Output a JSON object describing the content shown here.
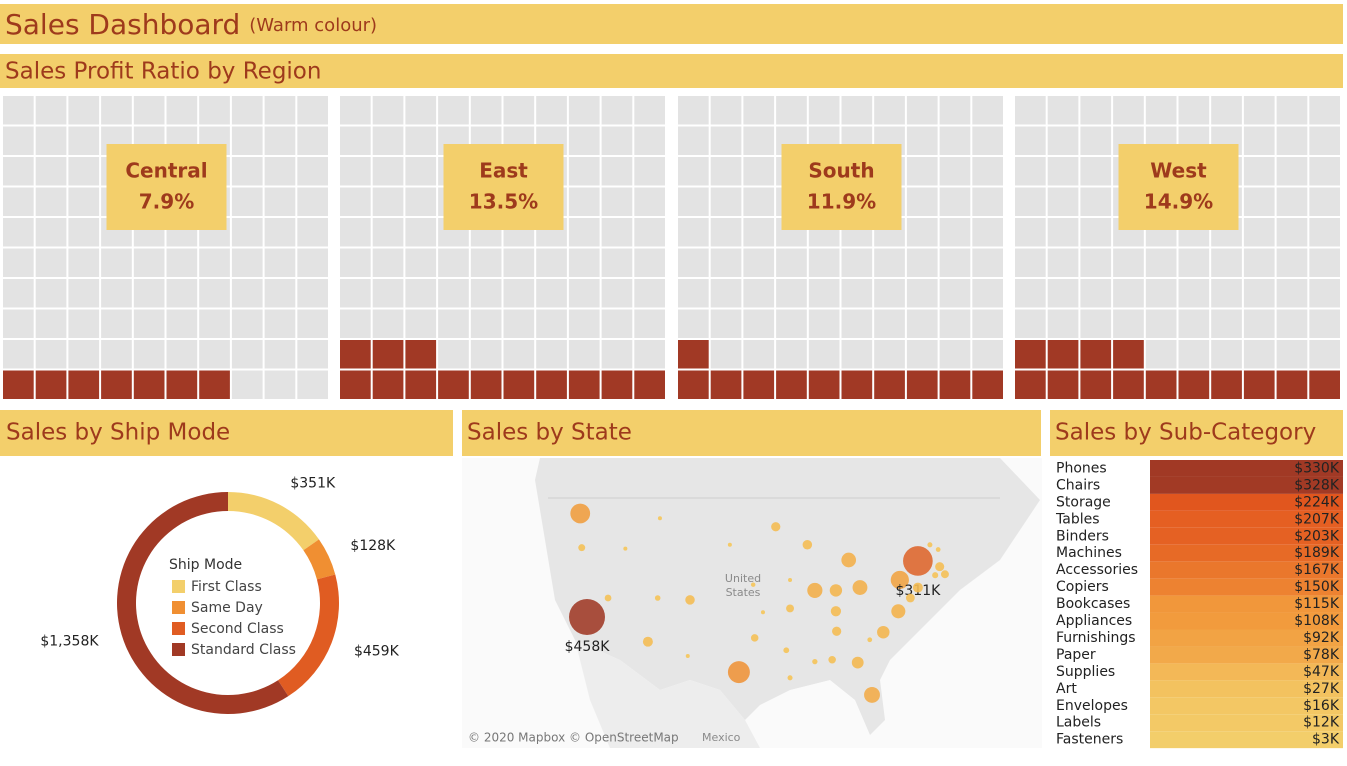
{
  "title": "Sales Dashboard",
  "subtitle": "(Warm colour)",
  "chart_data": [
    {
      "type": "waffle",
      "title": "Sales Profit Ratio by Region",
      "categories": [
        "Central",
        "East",
        "South",
        "West"
      ],
      "values": [
        7.9,
        13.5,
        11.9,
        14.9
      ],
      "value_labels": [
        "7.9%",
        "13.5%",
        "11.9%",
        "14.9%"
      ],
      "color": "#a13925",
      "empty_color": "#e3e3e3",
      "label_color": "#f3cf6b"
    },
    {
      "type": "donut",
      "title": "Sales by Ship Mode",
      "legend_title": "Ship Mode",
      "categories": [
        "First Class",
        "Same Day",
        "Second Class",
        "Standard Class"
      ],
      "values": [
        351000,
        128000,
        459000,
        1358000
      ],
      "value_labels": [
        "$351K",
        "$128K",
        "$459K",
        "$1,358K"
      ],
      "colors": [
        "#f3cf6b",
        "#f08f32",
        "#e05c22",
        "#a13925"
      ]
    },
    {
      "type": "bubble-map",
      "title": "Sales by State",
      "lon": [
        -120.4,
        -120.2,
        -119.5,
        -116.7,
        -111.4,
        -110.1,
        -114.4,
        -109.8,
        -105.8,
        -106.1,
        -99.3,
        -97.2,
        -96.1,
        -97.4,
        -100.5,
        -94.4,
        -92.5,
        -92.5,
        -93.0,
        -92.5,
        -90.2,
        -89.2,
        -84.7,
        -86.4,
        -83.2,
        -86.4,
        -86.3,
        -89.2,
        -86.9,
        -83.5,
        -81.6,
        -81.9,
        -80.1,
        -78.1,
        -77.9,
        -75.5,
        -75.5,
        -76.5,
        -72.6,
        -73.2,
        -71.9,
        -72.8,
        -73.9
      ],
      "lat": [
        47.9,
        44.3,
        37.0,
        39.0,
        34.4,
        39.0,
        44.2,
        47.4,
        38.8,
        32.9,
        31.2,
        34.8,
        37.5,
        40.4,
        44.6,
        46.5,
        40.9,
        37.9,
        33.5,
        30.6,
        44.6,
        39.8,
        43.0,
        39.8,
        40.1,
        37.6,
        35.5,
        32.3,
        32.5,
        32.2,
        28.8,
        34.6,
        35.4,
        37.6,
        40.9,
        42.9,
        40.1,
        39.0,
        42.3,
        41.4,
        41.5,
        44.1,
        44.6
      ],
      "values": [
        138000,
        17000,
        458000,
        16000,
        35000,
        11000,
        4000,
        5000,
        32000,
        5000,
        170000,
        20000,
        3000,
        7000,
        1000,
        30000,
        5000,
        22000,
        12000,
        9000,
        32000,
        81000,
        76000,
        54000,
        78000,
        37000,
        30000,
        10000,
        20000,
        49000,
        89000,
        8000,
        55000,
        70000,
        117000,
        311000,
        35000,
        27000,
        29000,
        13000,
        22000,
        8000,
        9000
      ],
      "value_labels": [
        null,
        null,
        "$458K",
        null,
        null,
        null,
        null,
        null,
        null,
        null,
        null,
        null,
        null,
        null,
        null,
        null,
        null,
        null,
        null,
        null,
        null,
        null,
        null,
        null,
        null,
        null,
        null,
        null,
        null,
        null,
        null,
        null,
        null,
        null,
        null,
        "$311K",
        null,
        null,
        null,
        null,
        null,
        null,
        null
      ],
      "color_range": [
        "#f5c65a",
        "#f09a3e",
        "#e06a30",
        "#a13d2a"
      ],
      "annotations": [
        "United States",
        "Mexico"
      ],
      "attribution": "© 2020 Mapbox © OpenStreetMap"
    },
    {
      "type": "highlight-table",
      "title": "Sales by Sub-Category",
      "categories": [
        "Phones",
        "Chairs",
        "Storage",
        "Tables",
        "Binders",
        "Machines",
        "Accessories",
        "Copiers",
        "Bookcases",
        "Appliances",
        "Furnishings",
        "Paper",
        "Supplies",
        "Art",
        "Envelopes",
        "Labels",
        "Fasteners"
      ],
      "values": [
        330000,
        328000,
        224000,
        207000,
        203000,
        189000,
        167000,
        150000,
        115000,
        108000,
        92000,
        78000,
        47000,
        27000,
        16000,
        12000,
        3000
      ],
      "value_labels": [
        "$330K",
        "$328K",
        "$224K",
        "$207K",
        "$203K",
        "$189K",
        "$167K",
        "$150K",
        "$115K",
        "$108K",
        "$92K",
        "$78K",
        "$47K",
        "$27K",
        "$16K",
        "$12K",
        "$3K"
      ],
      "color_range": [
        "#f3cf6b",
        "#f29a3c",
        "#e3571e",
        "#a13925"
      ]
    }
  ]
}
